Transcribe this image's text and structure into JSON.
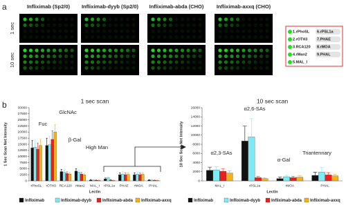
{
  "panel_a": {
    "label": "a",
    "columns": [
      "Infliximab (Sp2/0)",
      "Infliximab-dyyb (Sp2/0)",
      "Infliximab-abda (CHO)",
      "Infliximab-axxq (CHO)"
    ],
    "rows": [
      "1 sec",
      "10 sec"
    ],
    "legend": [
      "1.rPhoSL",
      "2.rOTH3",
      "3.RCA120",
      "4.rMan2",
      "5.MAL_I",
      "6.rPSL1a",
      "7.PHAE",
      "8.rMOA",
      "9.PHAL"
    ]
  },
  "panel_b": {
    "label": "b"
  },
  "chart_data": [
    {
      "type": "bar",
      "title": "1 sec scan",
      "y_label": "1 Sec Scan Net Intensity",
      "x_label": "Lectin",
      "categories": [
        "rPhoSL",
        "rOTH3",
        "RCA120",
        "rMan2",
        "MAL_I",
        "rPSL1a",
        "PHAE",
        "rMOA",
        "PHAL"
      ],
      "series": [
        {
          "name": "Infliximab",
          "color": "#111111",
          "values": [
            13500,
            14500,
            3800,
            4000,
            300,
            800,
            2500,
            2500,
            300
          ],
          "errors": [
            3000,
            3000,
            900,
            1000,
            200,
            400,
            800,
            800,
            200
          ]
        },
        {
          "name": "Infliximab-dyyb",
          "color": "#7fe9f5",
          "values": [
            13800,
            14800,
            3500,
            3500,
            300,
            1200,
            2800,
            2800,
            300
          ],
          "errors": [
            3000,
            3500,
            800,
            900,
            200,
            500,
            900,
            900,
            200
          ]
        },
        {
          "name": "Infliximab-abda",
          "color": "#e8221b",
          "values": [
            13000,
            17000,
            3000,
            2800,
            250,
            300,
            2500,
            2500,
            200
          ],
          "errors": [
            2500,
            3500,
            700,
            700,
            150,
            200,
            700,
            700,
            150
          ]
        },
        {
          "name": "Infliximab-axxq",
          "color": "#f2b21a",
          "values": [
            14500,
            20000,
            2800,
            2500,
            250,
            200,
            2600,
            2700,
            200
          ],
          "errors": [
            2500,
            3000,
            600,
            600,
            150,
            150,
            700,
            700,
            150
          ]
        }
      ],
      "annotations": [
        "Fuc",
        "GlcNAc",
        "β-Gal",
        "High Man"
      ],
      "ylim": [
        0,
        30000
      ],
      "yticks": [
        0,
        2500,
        5000,
        7500,
        10000,
        12500,
        15000,
        17500,
        20000,
        22500,
        25000,
        27500,
        30000
      ]
    },
    {
      "type": "bar",
      "title": "10 sec scan",
      "y_label": "10 Sec Scan Net Intensity",
      "x_label": "Lectin",
      "categories": [
        "MAL_I",
        "rPSL1a",
        "rMOA",
        "PHAL"
      ],
      "series": [
        {
          "name": "Infliximab",
          "color": "#111111",
          "values": [
            2300,
            8700,
            500,
            1200
          ],
          "errors": [
            700,
            3300,
            300,
            700
          ]
        },
        {
          "name": "Infliximab-dyyb",
          "color": "#7fe9f5",
          "values": [
            2400,
            9600,
            900,
            1900
          ],
          "errors": [
            700,
            4000,
            300,
            1000
          ]
        },
        {
          "name": "Infliximab-abda",
          "color": "#e8221b",
          "values": [
            2100,
            700,
            700,
            1300
          ],
          "errors": [
            600,
            300,
            300,
            500
          ]
        },
        {
          "name": "Infliximab-axxq",
          "color": "#f2b21a",
          "values": [
            1700,
            500,
            800,
            1100
          ],
          "errors": [
            500,
            200,
            300,
            300
          ]
        }
      ],
      "annotations": [
        "α2,3-SAs",
        "α2,6-SAs",
        "α-Gal",
        "Triantennary"
      ],
      "ylim": [
        0,
        16000
      ],
      "yticks": [
        0,
        2000,
        4000,
        6000,
        8000,
        10000,
        12000,
        14000,
        16000
      ]
    }
  ]
}
